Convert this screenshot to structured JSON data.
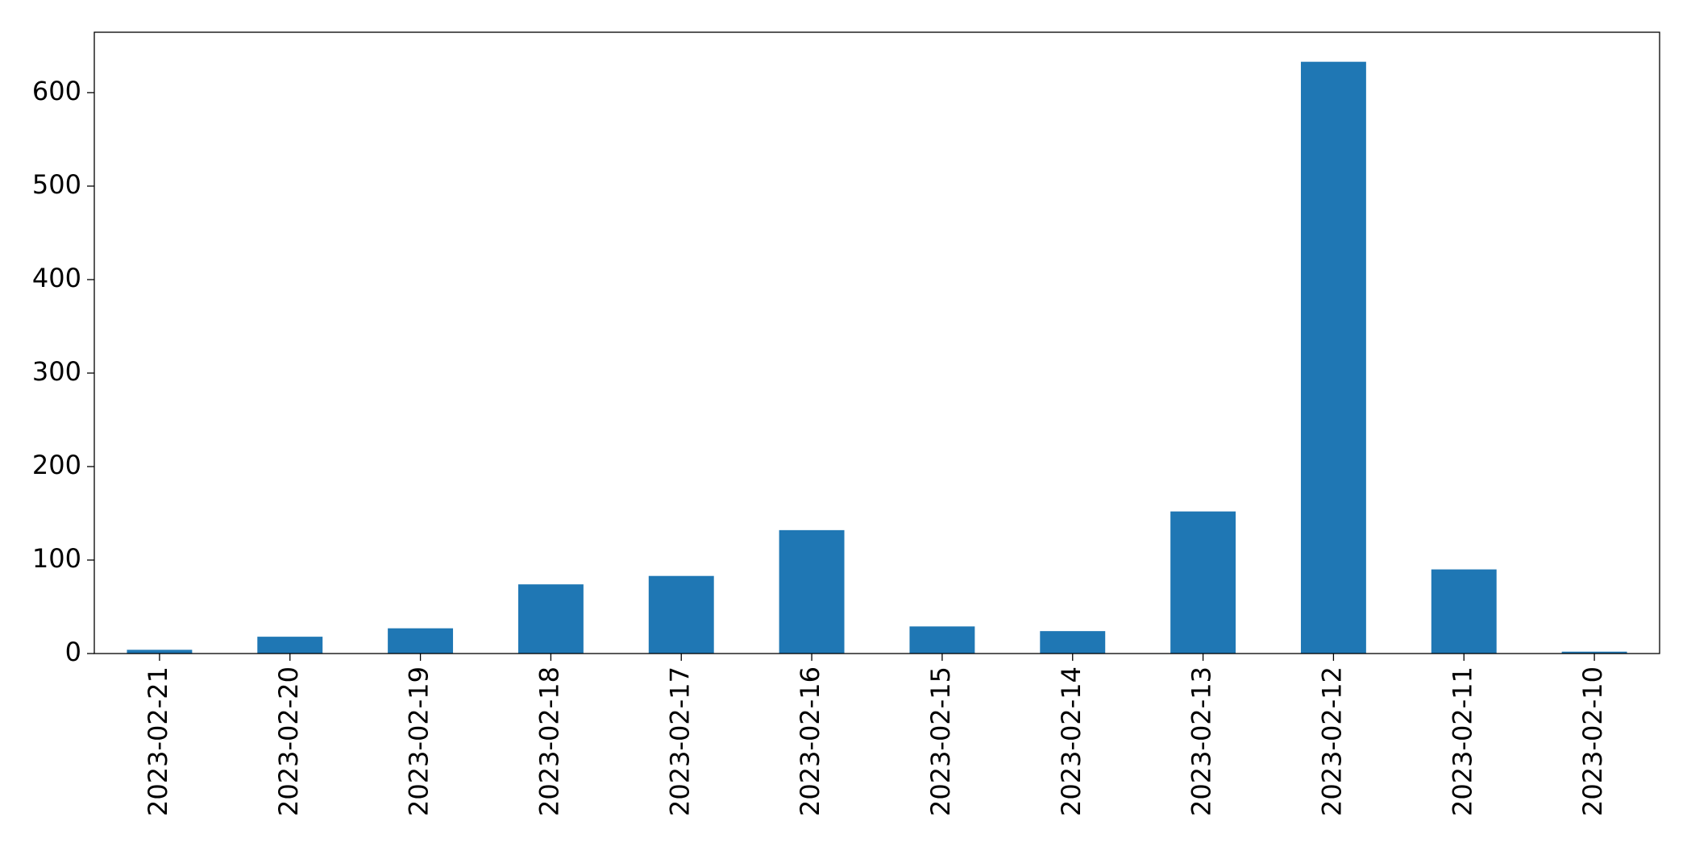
{
  "chart_data": {
    "type": "bar",
    "x": [
      "2023-02-21",
      "2023-02-20",
      "2023-02-19",
      "2023-02-18",
      "2023-02-17",
      "2023-02-16",
      "2023-02-15",
      "2023-02-14",
      "2023-02-13",
      "2023-02-12",
      "2023-02-11",
      "2023-02-10"
    ],
    "values": [
      4,
      18,
      27,
      74,
      83,
      132,
      29,
      24,
      152,
      633,
      90,
      2
    ],
    "color": "#1f77b4",
    "ylim": [
      0,
      664.6
    ],
    "yticks": [
      0,
      100,
      200,
      300,
      400,
      500,
      600
    ],
    "grid": false
  }
}
